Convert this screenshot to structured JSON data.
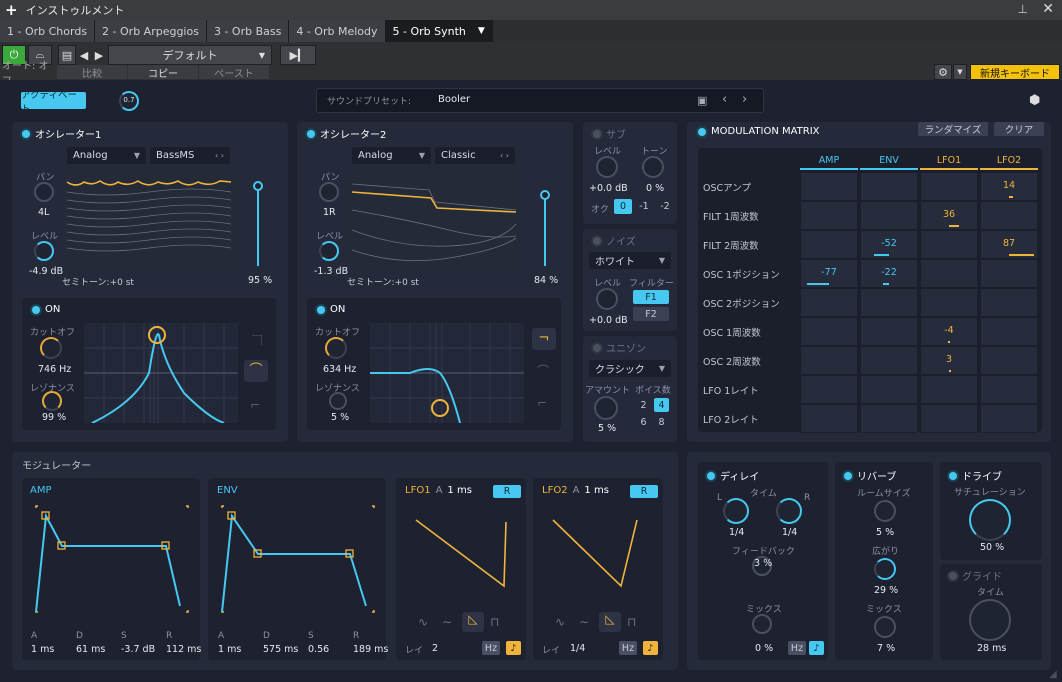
{
  "title": "インストゥルメント",
  "tabs": [
    "1 - Orb Chords",
    "2 - Orb Arpeggios",
    "3 - Orb Bass",
    "4 - Orb Melody",
    "5 - Orb Synth"
  ],
  "toolbar": {
    "auto": "オート: オフ",
    "preset_name": "デフォルト",
    "compare": "比較",
    "copy": "コピー",
    "paste": "ペースト",
    "new_keyboard": "新規キーボード"
  },
  "top": {
    "activate": "アクティベート",
    "master_value": "0.7",
    "sound_preset_label": "サウンドプリセット:",
    "sound_preset_value": "Booler"
  },
  "osc1": {
    "title": "オシレーター1",
    "type": "Analog",
    "wave": "BassMS",
    "pan_label": "パン",
    "pan_value": "4L",
    "level_label": "レベル",
    "level_value": "-4.9 dB",
    "semitone": "セミトーン:+0 st",
    "amount": "95 %",
    "filter_on": "ON",
    "cutoff_label": "カットオフ",
    "cutoff_value": "746 Hz",
    "res_label": "レゾナンス",
    "res_value": "99 %"
  },
  "osc2": {
    "title": "オシレーター2",
    "type": "Analog",
    "wave": "Classic",
    "pan_label": "パン",
    "pan_value": "1R",
    "level_label": "レベル",
    "level_value": "-1.3 dB",
    "semitone": "セミトーン:+0 st",
    "amount": "84 %",
    "filter_on": "ON",
    "cutoff_label": "カットオフ",
    "cutoff_value": "634 Hz",
    "res_label": "レゾナンス",
    "res_value": "5 %"
  },
  "sub": {
    "title": "サブ",
    "level_label": "レベル",
    "level_value": "+0.0 dB",
    "tone_label": "トーン",
    "tone_value": "0 %",
    "oct_label": "オク",
    "oct": [
      "0",
      "-1",
      "-2"
    ]
  },
  "noise": {
    "title": "ノイズ",
    "type": "ホワイト",
    "level_label": "レベル",
    "filter_label": "フィルター",
    "level_value": "+0.0 dB",
    "f1": "F1",
    "f2": "F2"
  },
  "unison": {
    "title": "ユニゾン",
    "mode": "クラシック",
    "amount_label": "アマウント",
    "voices_label": "ボイス数",
    "amount_value": "5 %",
    "voices": [
      "2",
      "4",
      "6",
      "8"
    ]
  },
  "matrix": {
    "title": "MODULATION MATRIX",
    "randomize": "ランダマイズ",
    "clear": "クリア",
    "cols": [
      "AMP",
      "ENV",
      "LFO1",
      "LFO2"
    ],
    "rows": [
      "OSCアンプ",
      "FILT 1周波数",
      "FILT 2周波数",
      "OSC 1ポジション",
      "OSC 2ポジション",
      "OSC 1周波数",
      "OSC 2周波数",
      "LFO 1レイト",
      "LFO 2レイト"
    ],
    "values": [
      {
        "r": 0,
        "c": 3,
        "v": "14"
      },
      {
        "r": 1,
        "c": 2,
        "v": "36"
      },
      {
        "r": 2,
        "c": 1,
        "v": "-52"
      },
      {
        "r": 2,
        "c": 3,
        "v": "87"
      },
      {
        "r": 3,
        "c": 0,
        "v": "-77"
      },
      {
        "r": 3,
        "c": 1,
        "v": "-22"
      },
      {
        "r": 5,
        "c": 2,
        "v": "-4"
      },
      {
        "r": 6,
        "c": 2,
        "v": "3"
      }
    ]
  },
  "modulator": {
    "title": "モジュレーター",
    "amp": {
      "title": "AMP",
      "labels": [
        "A",
        "D",
        "S",
        "R"
      ],
      "values": [
        "1 ms",
        "61 ms",
        "-3.7 dB",
        "112 ms"
      ]
    },
    "env": {
      "title": "ENV",
      "labels": [
        "A",
        "D",
        "S",
        "R"
      ],
      "values": [
        "1 ms",
        "575 ms",
        "0.56",
        "189 ms"
      ]
    },
    "lfo1": {
      "title": "LFO1",
      "a": "A",
      "a_val": "1 ms",
      "r": "R",
      "rate_label": "レイ",
      "rate": "2",
      "hz": "Hz"
    },
    "lfo2": {
      "title": "LFO2",
      "a": "A",
      "a_val": "1 ms",
      "r": "R",
      "rate_label": "レイ",
      "rate": "1/4",
      "hz": "Hz"
    }
  },
  "delay": {
    "title": "ディレイ",
    "time_label": "タイム",
    "l": "L",
    "r": "R",
    "l_val": "1/4",
    "r_val": "1/4",
    "fb_label": "フィードバック",
    "fb_val": "3 %",
    "mix_label": "ミックス",
    "mix_val": "0 %",
    "hz": "Hz"
  },
  "reverb": {
    "title": "リバーブ",
    "size_label": "ルームサイズ",
    "size_val": "5 %",
    "width_label": "広がり",
    "width_val": "29 %",
    "mix_label": "ミックス",
    "mix_val": "7 %"
  },
  "drive": {
    "title": "ドライブ",
    "sat_label": "サチュレーション",
    "sat_val": "50 %"
  },
  "glide": {
    "title": "グライド",
    "time_label": "タイム",
    "time_val": "28 ms"
  }
}
